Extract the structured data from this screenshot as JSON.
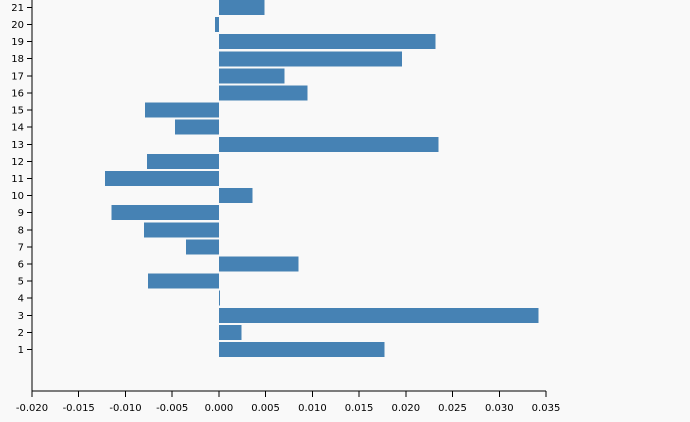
{
  "chart_data": {
    "type": "bar",
    "orientation": "horizontal",
    "title": "",
    "xlabel": "",
    "ylabel": "",
    "bar_color": "#4682b4",
    "background_color": "#f9f9f9",
    "xlim": [
      -0.02,
      0.035
    ],
    "x_ticks": [
      -0.02,
      -0.015,
      -0.01,
      -0.005,
      0.0,
      0.005,
      0.01,
      0.015,
      0.02,
      0.025,
      0.03,
      0.035
    ],
    "x_tick_labels": [
      "-0.020",
      "-0.015",
      "-0.010",
      "-0.005",
      "0.000",
      "0.005",
      "0.010",
      "0.015",
      "0.020",
      "0.025",
      "0.030",
      "0.035"
    ],
    "categories": [
      "1",
      "2",
      "3",
      "4",
      "5",
      "6",
      "7",
      "8",
      "9",
      "10",
      "11",
      "12",
      "13",
      "14",
      "15",
      "16",
      "17",
      "18",
      "19",
      "20",
      "21"
    ],
    "values": [
      0.0177,
      0.0024,
      0.0342,
      0.0001,
      -0.0076,
      0.0085,
      -0.0035,
      -0.008,
      -0.0115,
      0.0036,
      -0.0122,
      -0.0077,
      0.0235,
      -0.0047,
      -0.0079,
      0.0095,
      0.007,
      0.0196,
      0.0232,
      -0.0004,
      0.0049
    ],
    "grid": false,
    "legend": "none"
  }
}
